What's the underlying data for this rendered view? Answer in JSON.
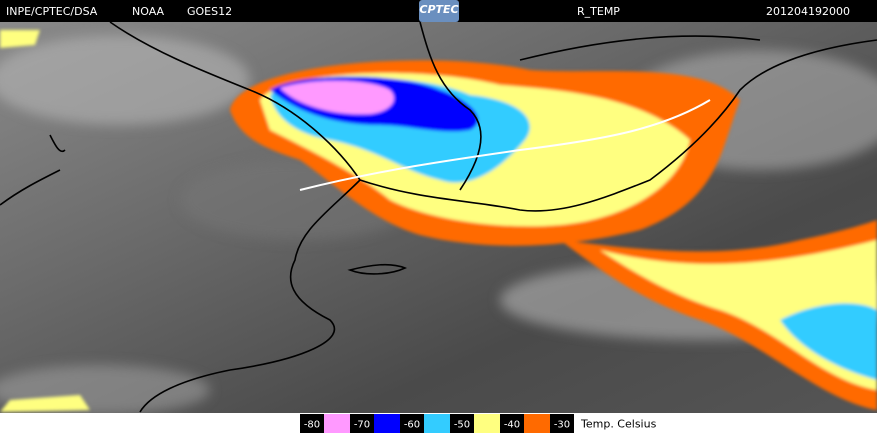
{
  "header": {
    "source": "INPE/CPTEC/DSA",
    "agency": "NOAA",
    "satellite": "GOES12",
    "logo": "CPTEC",
    "product": "R_TEMP",
    "timestamp": "201204192000"
  },
  "legend": {
    "labels": [
      "-80",
      "-70",
      "-60",
      "-50",
      "-40",
      "-30"
    ],
    "colors": [
      "#ff99ff",
      "#0000ff",
      "#33ccff",
      "#ffff80",
      "#ff6a00"
    ],
    "unit": "Temp. Celsius"
  }
}
